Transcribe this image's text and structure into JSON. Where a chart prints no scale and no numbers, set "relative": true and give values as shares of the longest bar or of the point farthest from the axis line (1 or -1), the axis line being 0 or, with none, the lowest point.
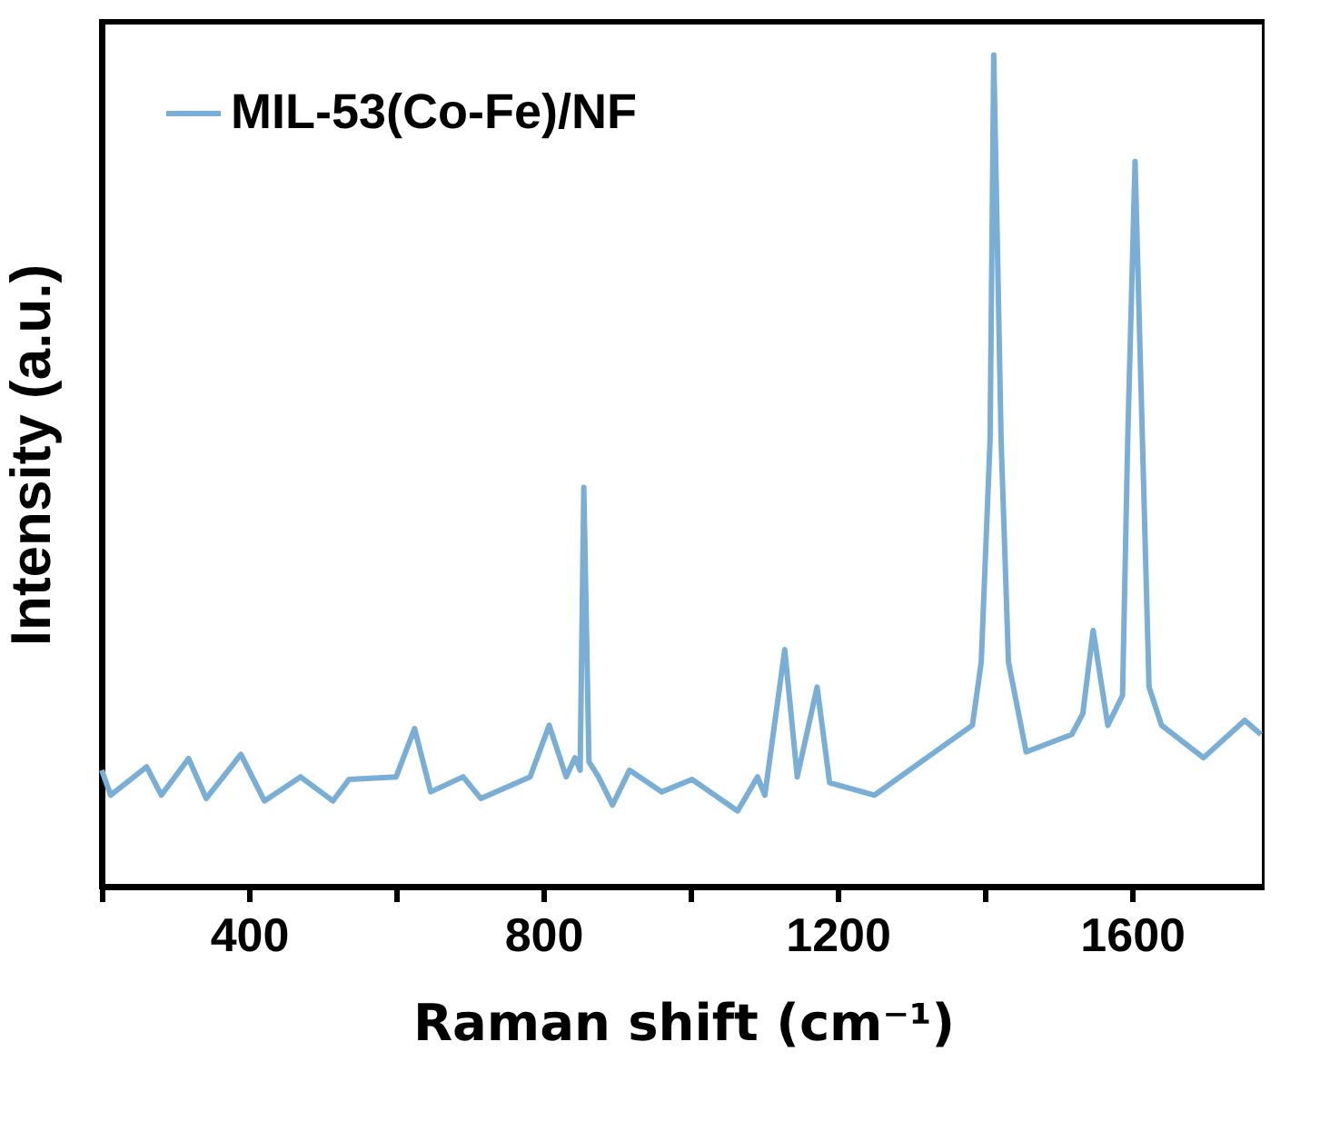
{
  "chart_data": {
    "type": "line",
    "relative": true,
    "xlabel": "Raman shift (cm⁻¹)",
    "ylabel": "Intensity (a.u.)",
    "xlim": [
      200,
      1780
    ],
    "xticks": [
      {
        "value": 200,
        "label": null
      },
      400,
      {
        "value": 600,
        "label": null
      },
      800,
      {
        "value": 1000,
        "label": null
      },
      1200,
      {
        "value": 1400,
        "label": null
      },
      1600
    ],
    "grid": false,
    "legend": "top left",
    "line_style": "solid",
    "marker": "none",
    "x": [
      200,
      212,
      261,
      281,
      318,
      342,
      389,
      421,
      470,
      514,
      536,
      600,
      625,
      647,
      691,
      715,
      782,
      808,
      831,
      843,
      850,
      855,
      862,
      875,
      894,
      917,
      961,
      1002,
      1064,
      1091,
      1101,
      1128,
      1145,
      1172,
      1189,
      1250,
      1321,
      1383,
      1395,
      1407,
      1412,
      1422,
      1432,
      1456,
      1518,
      1533,
      1547,
      1567,
      1587,
      1594,
      1604,
      1614,
      1623,
      1640,
      1697,
      1753,
      1775
    ],
    "series": [
      {
        "name": "MIL-53(Co-Fe)/NF",
        "color": "#79aed6",
        "values": [
          0.14,
          0.11,
          0.144,
          0.11,
          0.154,
          0.106,
          0.159,
          0.103,
          0.132,
          0.103,
          0.129,
          0.132,
          0.19,
          0.114,
          0.132,
          0.106,
          0.132,
          0.194,
          0.132,
          0.155,
          0.14,
          0.48,
          0.15,
          0.132,
          0.098,
          0.14,
          0.114,
          0.129,
          0.091,
          0.132,
          0.11,
          0.285,
          0.132,
          0.24,
          0.125,
          0.11,
          0.155,
          0.194,
          0.27,
          0.537,
          1.0,
          0.537,
          0.27,
          0.162,
          0.183,
          0.208,
          0.308,
          0.194,
          0.23,
          0.537,
          0.872,
          0.537,
          0.24,
          0.194,
          0.155,
          0.2,
          0.183
        ]
      }
    ]
  }
}
